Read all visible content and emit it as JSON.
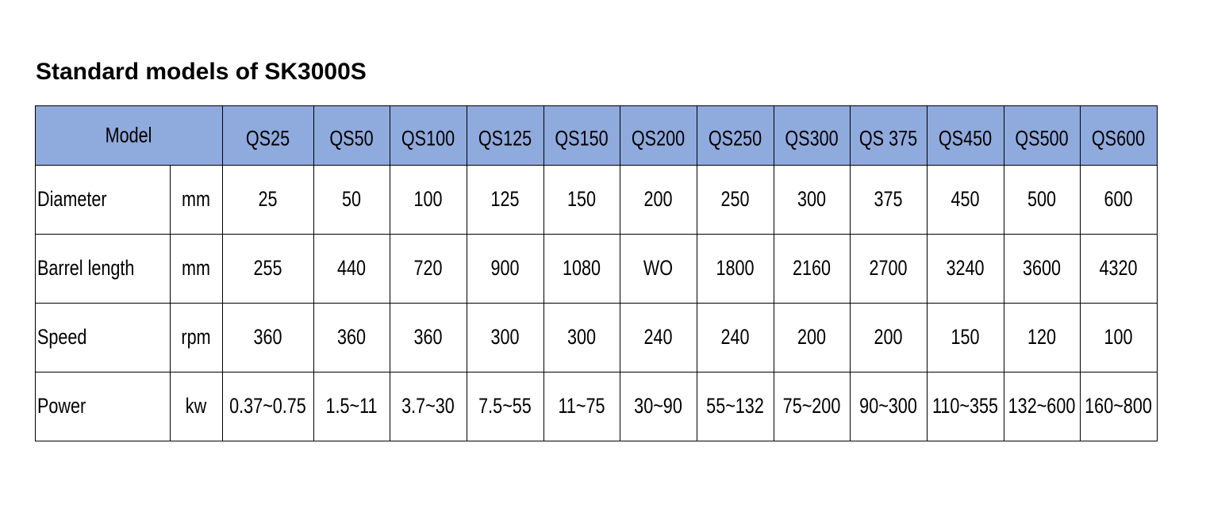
{
  "title": "Standard models of SK3000S",
  "table": {
    "header": {
      "label": "Model",
      "models": [
        "QS25",
        "QS50",
        "QS100",
        "QS125",
        "QS150",
        "QS200",
        "QS250",
        "QS300",
        "QS 375",
        "QS450",
        "QS500",
        "QS600"
      ]
    },
    "rows": [
      {
        "label": "Diameter",
        "unit": "mm",
        "values": [
          "25",
          "50",
          "100",
          "125",
          "150",
          "200",
          "250",
          "300",
          "375",
          "450",
          "500",
          "600"
        ]
      },
      {
        "label": "Barrel length",
        "unit": "mm",
        "values": [
          "255",
          "440",
          "720",
          "900",
          "1080",
          "WO",
          "1800",
          "2160",
          "2700",
          "3240",
          "3600",
          "4320"
        ]
      },
      {
        "label": "Speed",
        "unit": "rpm",
        "values": [
          "360",
          "360",
          "360",
          "300",
          "300",
          "240",
          "240",
          "200",
          "200",
          "150",
          "120",
          "100"
        ]
      },
      {
        "label": "Power",
        "unit": "kw",
        "values": [
          "0.37~0.75",
          "1.5~11",
          "3.7~30",
          "7.5~55",
          "11~75",
          "30~90",
          "55~132",
          "75~200",
          "90~300",
          "110~355",
          "132~600",
          "160~800"
        ]
      }
    ]
  }
}
